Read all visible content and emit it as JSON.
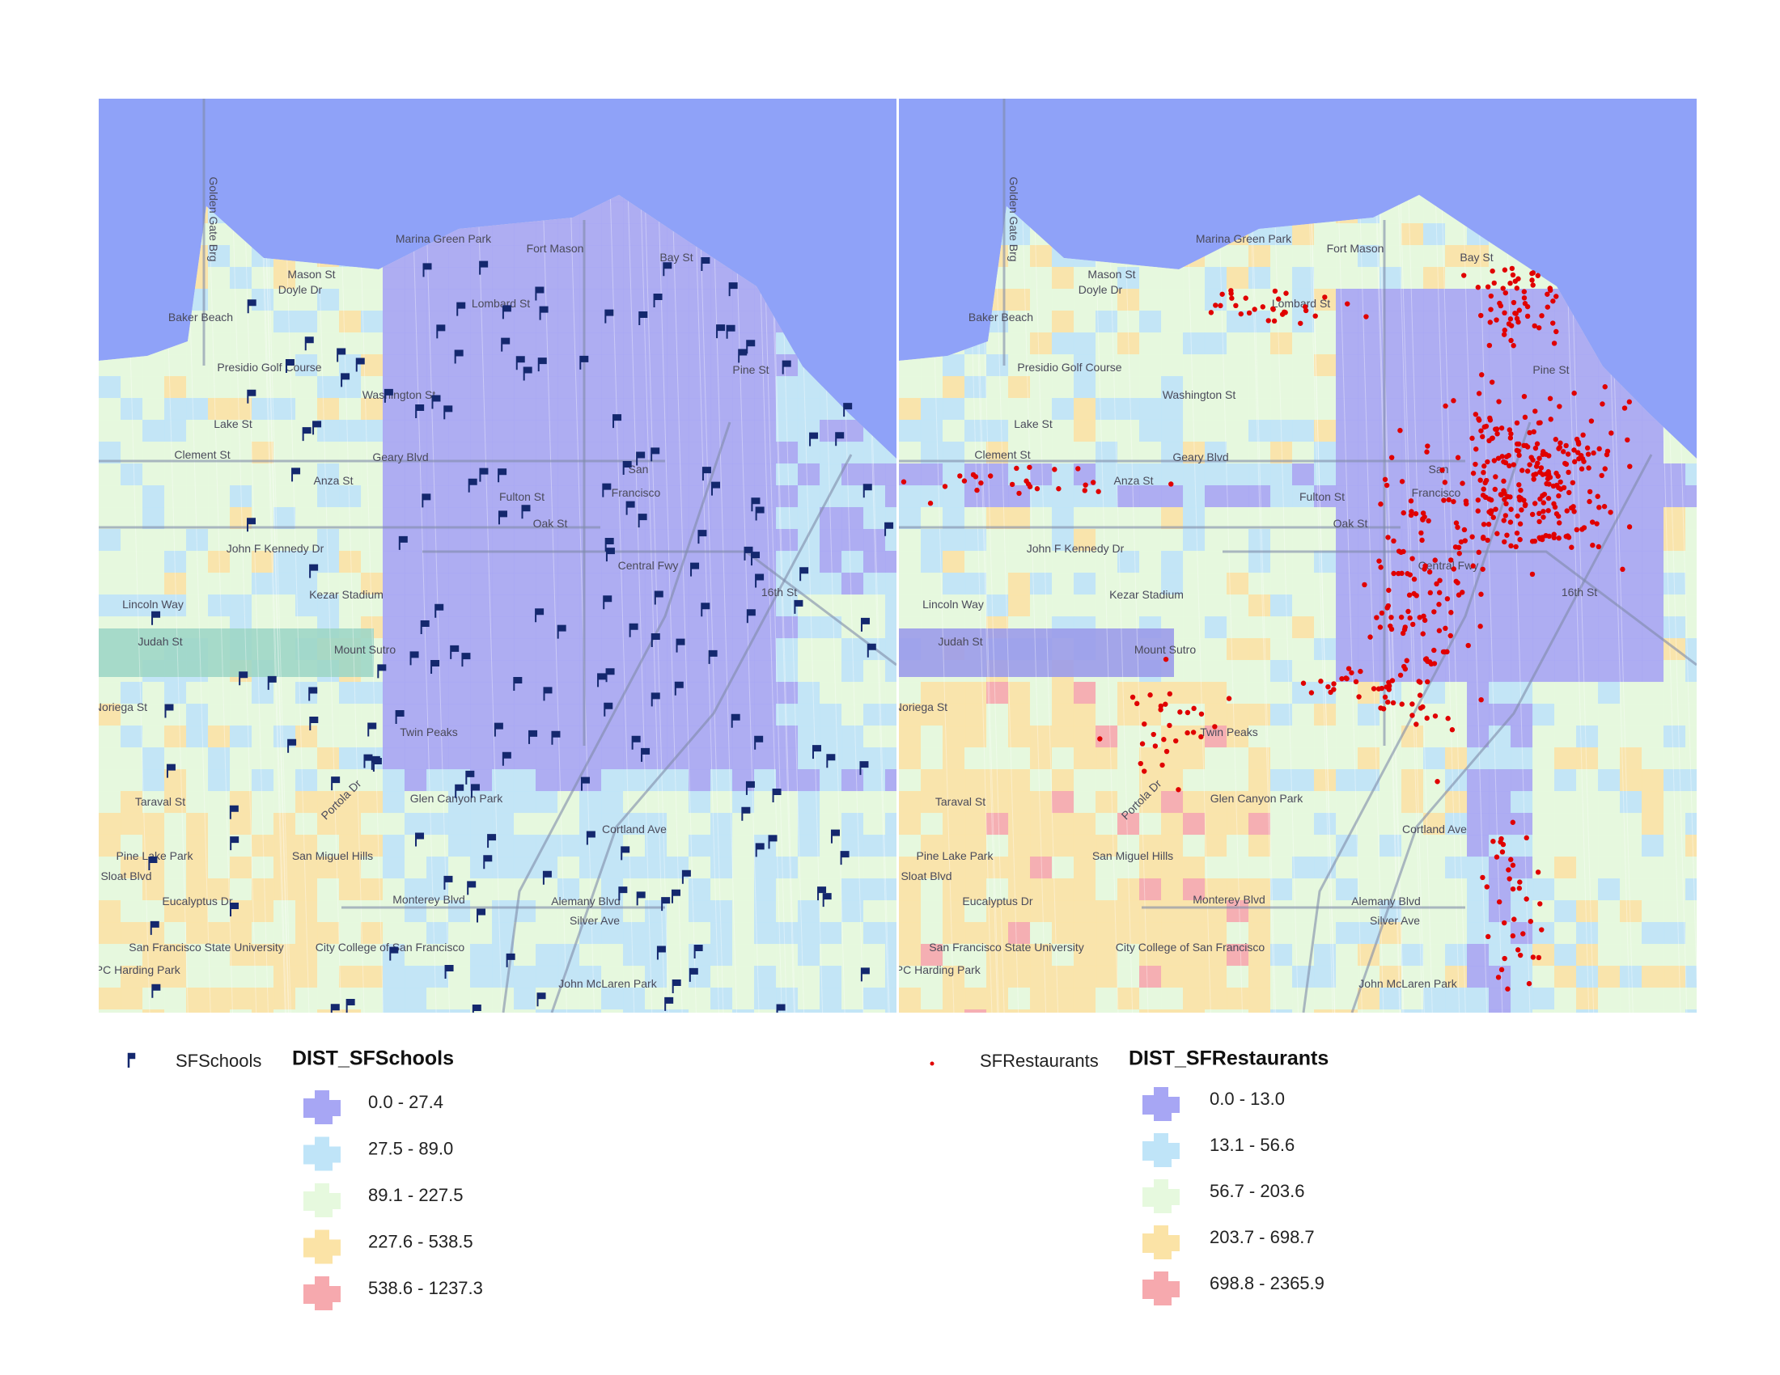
{
  "basemap_labels": [
    "Golden Gate Brg",
    "Marina Green Park",
    "Fort Mason",
    "Mason St",
    "Doyle Dr",
    "Lombard St",
    "Baker Beach",
    "Presidio Golf Course",
    "Washington St",
    "Lake St",
    "Clement St",
    "Geary Blvd",
    "Anza St",
    "San",
    "Francisco",
    "Fulton St",
    "Oak St",
    "John F Kennedy Dr",
    "Lincoln Way",
    "Kezar Stadium",
    "Central Fwy",
    "Mount Sutro",
    "Twin Peaks",
    "Portola Dr",
    "Glen Canyon Park",
    "San Miguel Hills",
    "Monterey Blvd",
    "City College of San Francisco",
    "Eucalyptus Dr",
    "Alemany Blvd",
    "Silver Ave",
    "John McLaren Park",
    "Cortland Ave",
    "16th St",
    "Pine St",
    "Bay St",
    "TPC Harding Park",
    "San Francisco State University",
    "Pine Lake Park",
    "Sloat Blvd",
    "Taraval St",
    "Noriega St",
    "Judah St"
  ],
  "maps": [
    {
      "point_layer": "SFSchools",
      "point_color": "#14286e",
      "field": "DIST_SFSchools",
      "classes": [
        {
          "label": "0.0 - 27.4",
          "color": "#a7a6f4"
        },
        {
          "label": "27.5 - 89.0",
          "color": "#bfe4f8"
        },
        {
          "label": "89.1 - 227.5",
          "color": "#e6f9de"
        },
        {
          "label": "227.6 - 538.5",
          "color": "#fbe3a6"
        },
        {
          "label": "538.6 - 1237.3",
          "color": "#f6a9ae"
        }
      ]
    },
    {
      "point_layer": "SFRestaurants",
      "point_color": "#e00000",
      "field": "DIST_SFRestaurants",
      "classes": [
        {
          "label": "0.0 - 13.0",
          "color": "#a7a6f4"
        },
        {
          "label": "13.1 - 56.6",
          "color": "#bfe4f8"
        },
        {
          "label": "56.7 - 203.6",
          "color": "#e6f9de"
        },
        {
          "label": "203.7 - 698.7",
          "color": "#fbe3a6"
        },
        {
          "label": "698.8 - 2365.9",
          "color": "#f6a9ae"
        }
      ]
    }
  ]
}
